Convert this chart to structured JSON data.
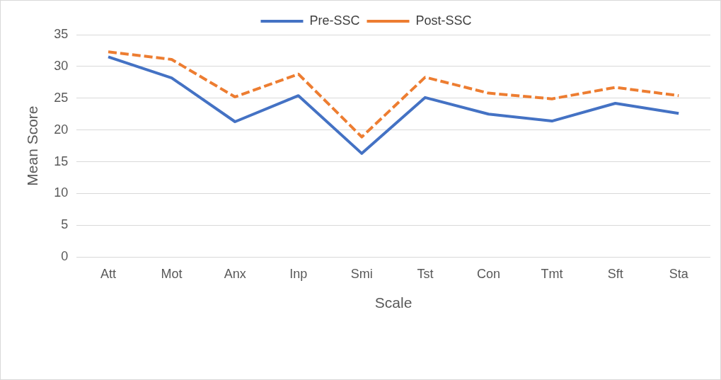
{
  "chart_data": {
    "type": "line",
    "xlabel": "Scale",
    "ylabel": "Mean Score",
    "categories": [
      "Att",
      "Mot",
      "Anx",
      "Inp",
      "Smi",
      "Tst",
      "Con",
      "Tmt",
      "Sft",
      "Sta"
    ],
    "series": [
      {
        "name": "Pre-SSC",
        "color": "#4472c4",
        "line_style": "solid",
        "values": [
          31.5,
          28.2,
          21.3,
          25.4,
          16.3,
          25.1,
          22.5,
          21.4,
          24.2,
          22.6
        ]
      },
      {
        "name": "Post-SSC",
        "color": "#ed7d31",
        "line_style": "dashed",
        "values": [
          32.3,
          31.1,
          25.2,
          28.8,
          18.9,
          28.3,
          25.8,
          24.9,
          26.7,
          25.4
        ]
      }
    ],
    "ylim": [
      0,
      35
    ],
    "yticks": [
      0,
      5,
      10,
      15,
      20,
      25,
      30,
      35
    ],
    "grid": "y",
    "legend": "top",
    "marker": "none"
  }
}
